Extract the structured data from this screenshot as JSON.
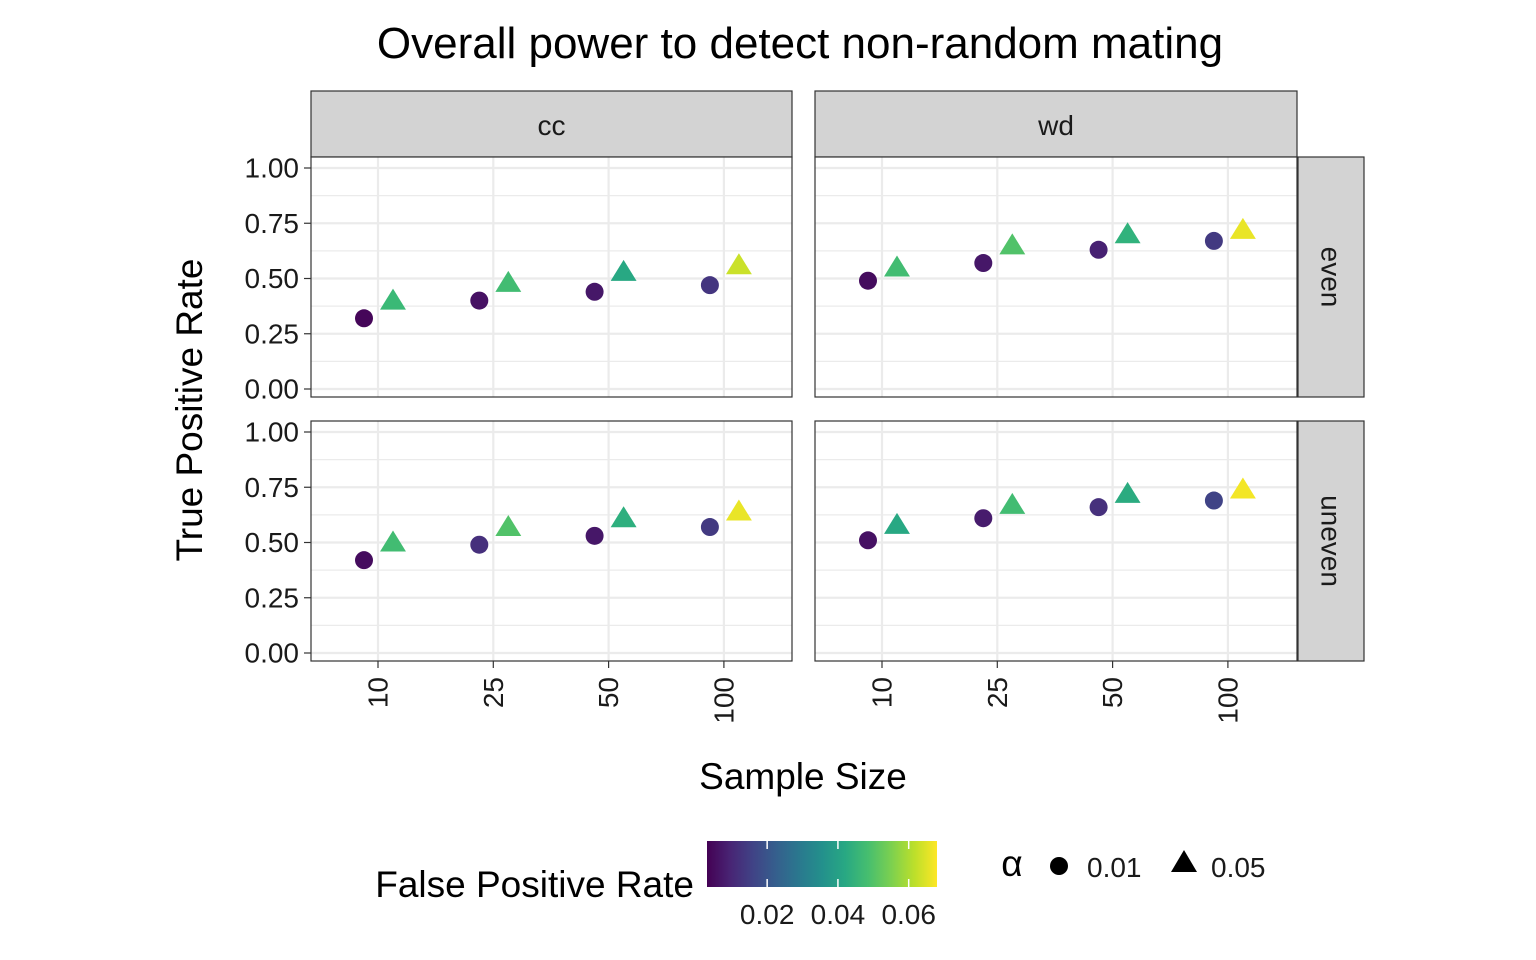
{
  "chart_data": {
    "type": "scatter",
    "title": "Overall power to detect non-random mating",
    "xlabel": "Sample Size",
    "ylabel": "True Positive Rate",
    "x_categories": [
      "10",
      "25",
      "50",
      "100"
    ],
    "y_ticks": [
      "0.00",
      "0.25",
      "0.50",
      "0.75",
      "1.00"
    ],
    "ylim": [
      0,
      1
    ],
    "grid": true,
    "facet_cols": [
      "cc",
      "wd"
    ],
    "facet_rows": [
      "even",
      "uneven"
    ],
    "color_legend": {
      "title": "False Positive Rate",
      "scale": "viridis",
      "range": [
        0.003,
        0.068
      ],
      "ticks": [
        "0.02",
        "0.04",
        "0.06"
      ],
      "tick_values": [
        0.02,
        0.04,
        0.06
      ]
    },
    "shape_legend": {
      "title": "α",
      "items": [
        {
          "label": "0.01",
          "shape": "circle"
        },
        {
          "label": "0.05",
          "shape": "triangle"
        }
      ]
    },
    "panels": [
      {
        "col": "cc",
        "row": "even",
        "points": [
          {
            "x": "10",
            "alpha": "0.01",
            "y": 0.32,
            "fpr": 0.004
          },
          {
            "x": "10",
            "alpha": "0.05",
            "y": 0.4,
            "fpr": 0.047
          },
          {
            "x": "25",
            "alpha": "0.01",
            "y": 0.4,
            "fpr": 0.006
          },
          {
            "x": "25",
            "alpha": "0.05",
            "y": 0.48,
            "fpr": 0.048
          },
          {
            "x": "50",
            "alpha": "0.01",
            "y": 0.44,
            "fpr": 0.007
          },
          {
            "x": "50",
            "alpha": "0.05",
            "y": 0.53,
            "fpr": 0.042
          },
          {
            "x": "100",
            "alpha": "0.01",
            "y": 0.47,
            "fpr": 0.013
          },
          {
            "x": "100",
            "alpha": "0.05",
            "y": 0.56,
            "fpr": 0.063
          }
        ]
      },
      {
        "col": "wd",
        "row": "even",
        "points": [
          {
            "x": "10",
            "alpha": "0.01",
            "y": 0.49,
            "fpr": 0.005
          },
          {
            "x": "10",
            "alpha": "0.05",
            "y": 0.55,
            "fpr": 0.048
          },
          {
            "x": "25",
            "alpha": "0.01",
            "y": 0.57,
            "fpr": 0.007
          },
          {
            "x": "25",
            "alpha": "0.05",
            "y": 0.65,
            "fpr": 0.05
          },
          {
            "x": "50",
            "alpha": "0.01",
            "y": 0.63,
            "fpr": 0.009
          },
          {
            "x": "50",
            "alpha": "0.05",
            "y": 0.7,
            "fpr": 0.045
          },
          {
            "x": "100",
            "alpha": "0.01",
            "y": 0.67,
            "fpr": 0.014
          },
          {
            "x": "100",
            "alpha": "0.05",
            "y": 0.72,
            "fpr": 0.066
          }
        ]
      },
      {
        "col": "cc",
        "row": "uneven",
        "points": [
          {
            "x": "10",
            "alpha": "0.01",
            "y": 0.42,
            "fpr": 0.005
          },
          {
            "x": "10",
            "alpha": "0.05",
            "y": 0.5,
            "fpr": 0.048
          },
          {
            "x": "25",
            "alpha": "0.01",
            "y": 0.49,
            "fpr": 0.012
          },
          {
            "x": "25",
            "alpha": "0.05",
            "y": 0.57,
            "fpr": 0.05
          },
          {
            "x": "50",
            "alpha": "0.01",
            "y": 0.53,
            "fpr": 0.007
          },
          {
            "x": "50",
            "alpha": "0.05",
            "y": 0.61,
            "fpr": 0.044
          },
          {
            "x": "100",
            "alpha": "0.01",
            "y": 0.57,
            "fpr": 0.014
          },
          {
            "x": "100",
            "alpha": "0.05",
            "y": 0.64,
            "fpr": 0.066
          }
        ]
      },
      {
        "col": "wd",
        "row": "uneven",
        "points": [
          {
            "x": "10",
            "alpha": "0.01",
            "y": 0.51,
            "fpr": 0.006
          },
          {
            "x": "10",
            "alpha": "0.05",
            "y": 0.58,
            "fpr": 0.042
          },
          {
            "x": "25",
            "alpha": "0.01",
            "y": 0.61,
            "fpr": 0.008
          },
          {
            "x": "25",
            "alpha": "0.05",
            "y": 0.67,
            "fpr": 0.048
          },
          {
            "x": "50",
            "alpha": "0.01",
            "y": 0.66,
            "fpr": 0.012
          },
          {
            "x": "50",
            "alpha": "0.05",
            "y": 0.72,
            "fpr": 0.043
          },
          {
            "x": "100",
            "alpha": "0.01",
            "y": 0.69,
            "fpr": 0.016
          },
          {
            "x": "100",
            "alpha": "0.05",
            "y": 0.74,
            "fpr": 0.067
          }
        ]
      }
    ]
  }
}
